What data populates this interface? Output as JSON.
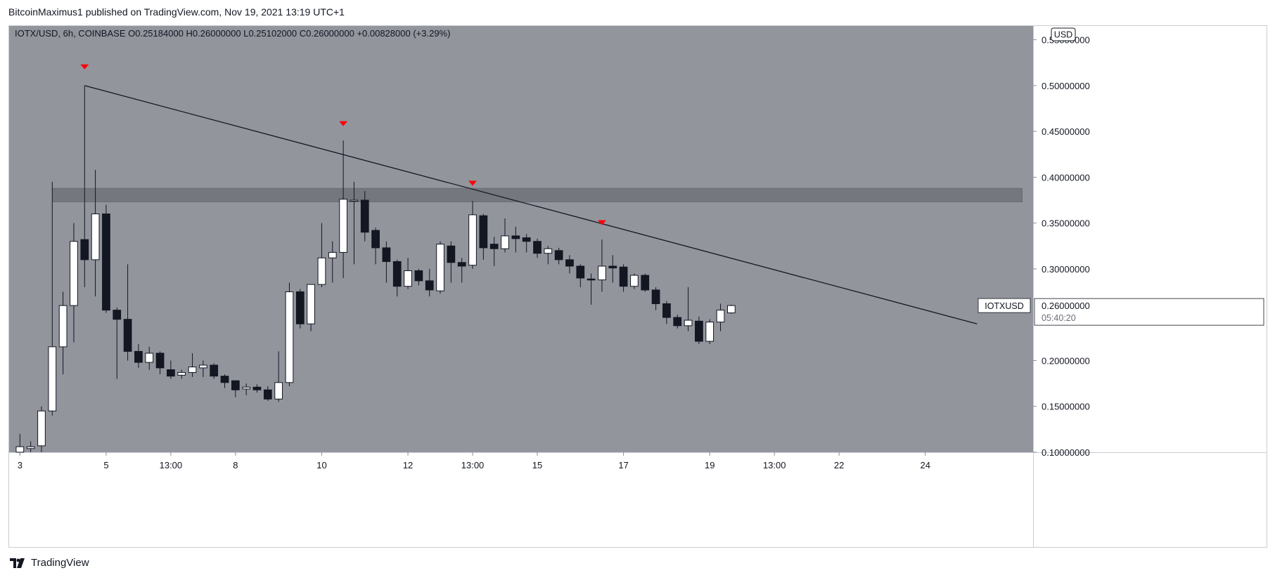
{
  "attribution": "BitcoinMaximus1 published on TradingView.com, Nov 19, 2021 13:19 UTC+1",
  "footer": {
    "brand": "TradingView"
  },
  "colors": {
    "plot_bg": "#93959d",
    "axis_bg": "#ffffff",
    "bull_candle": "#ffffff",
    "bear_candle": "#131722",
    "wick": "#131722",
    "marker": "#ff0000",
    "zone": "#6b6e76"
  },
  "chart_data": {
    "type": "candlestick",
    "symbol_line": {
      "symbol": "IOTX/USD, 6h, COINBASE",
      "o_label": "O",
      "o_value": "0.25184000",
      "h_label": "H",
      "h_value": "0.26000000",
      "l_label": "L",
      "l_value": "0.25102000",
      "c_label": "C",
      "c_value": "0.26000000",
      "change": "+0.00828000 (+3.29%)"
    },
    "currency_badge": "USD",
    "price_tag": {
      "symbol": "IOTXUSD",
      "price": "0.26000000",
      "countdown": "05:40:20",
      "value": 0.26
    },
    "y_range": [
      0.1,
      0.565
    ],
    "y_ticks": [
      {
        "value": 0.55,
        "label": "0.55000000"
      },
      {
        "value": 0.5,
        "label": "0.50000000"
      },
      {
        "value": 0.45,
        "label": "0.45000000"
      },
      {
        "value": 0.4,
        "label": "0.40000000"
      },
      {
        "value": 0.35,
        "label": "0.35000000"
      },
      {
        "value": 0.3,
        "label": "0.30000000"
      },
      {
        "value": 0.2,
        "label": "0.20000000"
      },
      {
        "value": 0.15,
        "label": "0.15000000"
      },
      {
        "value": 0.1,
        "label": "0.10000000"
      }
    ],
    "x_range": [
      2.75,
      26.5
    ],
    "x_ticks": [
      {
        "value": 3,
        "label": "3"
      },
      {
        "value": 5,
        "label": "5"
      },
      {
        "value": 6.5,
        "label": "13:00"
      },
      {
        "value": 8,
        "label": "8"
      },
      {
        "value": 10,
        "label": "10"
      },
      {
        "value": 12,
        "label": "12"
      },
      {
        "value": 13.5,
        "label": "13:00"
      },
      {
        "value": 15,
        "label": "15"
      },
      {
        "value": 17,
        "label": "17"
      },
      {
        "value": 19,
        "label": "19"
      },
      {
        "value": 20.5,
        "label": "13:00"
      },
      {
        "value": 22,
        "label": "22"
      },
      {
        "value": 24,
        "label": "24"
      }
    ],
    "candles": [
      {
        "t": 3.0,
        "o": 0.1,
        "h": 0.12,
        "l": 0.098,
        "c": 0.106
      },
      {
        "t": 3.25,
        "o": 0.104,
        "h": 0.112,
        "l": 0.1,
        "c": 0.106
      },
      {
        "t": 3.5,
        "o": 0.107,
        "h": 0.15,
        "l": 0.1,
        "c": 0.145
      },
      {
        "t": 3.75,
        "o": 0.145,
        "h": 0.395,
        "l": 0.14,
        "c": 0.215
      },
      {
        "t": 4.0,
        "o": 0.215,
        "h": 0.275,
        "l": 0.185,
        "c": 0.26
      },
      {
        "t": 4.25,
        "o": 0.26,
        "h": 0.35,
        "l": 0.22,
        "c": 0.33
      },
      {
        "t": 4.5,
        "o": 0.332,
        "h": 0.5,
        "l": 0.28,
        "c": 0.31
      },
      {
        "t": 4.75,
        "o": 0.31,
        "h": 0.408,
        "l": 0.27,
        "c": 0.36
      },
      {
        "t": 5.0,
        "o": 0.36,
        "h": 0.37,
        "l": 0.252,
        "c": 0.255
      },
      {
        "t": 5.25,
        "o": 0.255,
        "h": 0.258,
        "l": 0.18,
        "c": 0.245
      },
      {
        "t": 5.5,
        "o": 0.245,
        "h": 0.305,
        "l": 0.2,
        "c": 0.21
      },
      {
        "t": 5.75,
        "o": 0.21,
        "h": 0.218,
        "l": 0.192,
        "c": 0.198
      },
      {
        "t": 6.0,
        "o": 0.198,
        "h": 0.215,
        "l": 0.19,
        "c": 0.208
      },
      {
        "t": 6.25,
        "o": 0.208,
        "h": 0.21,
        "l": 0.185,
        "c": 0.192
      },
      {
        "t": 6.5,
        "o": 0.19,
        "h": 0.2,
        "l": 0.18,
        "c": 0.183
      },
      {
        "t": 6.75,
        "o": 0.184,
        "h": 0.19,
        "l": 0.18,
        "c": 0.187
      },
      {
        "t": 7.0,
        "o": 0.187,
        "h": 0.208,
        "l": 0.182,
        "c": 0.193
      },
      {
        "t": 7.25,
        "o": 0.192,
        "h": 0.2,
        "l": 0.182,
        "c": 0.195
      },
      {
        "t": 7.5,
        "o": 0.195,
        "h": 0.197,
        "l": 0.18,
        "c": 0.183
      },
      {
        "t": 7.75,
        "o": 0.183,
        "h": 0.185,
        "l": 0.17,
        "c": 0.176
      },
      {
        "t": 8.0,
        "o": 0.178,
        "h": 0.178,
        "l": 0.16,
        "c": 0.168
      },
      {
        "t": 8.25,
        "o": 0.169,
        "h": 0.175,
        "l": 0.162,
        "c": 0.171
      },
      {
        "t": 8.5,
        "o": 0.171,
        "h": 0.174,
        "l": 0.165,
        "c": 0.168
      },
      {
        "t": 8.75,
        "o": 0.168,
        "h": 0.172,
        "l": 0.156,
        "c": 0.158
      },
      {
        "t": 9.0,
        "o": 0.158,
        "h": 0.21,
        "l": 0.155,
        "c": 0.176
      },
      {
        "t": 9.25,
        "o": 0.176,
        "h": 0.285,
        "l": 0.172,
        "c": 0.275
      },
      {
        "t": 9.5,
        "o": 0.275,
        "h": 0.278,
        "l": 0.235,
        "c": 0.24
      },
      {
        "t": 9.75,
        "o": 0.24,
        "h": 0.28,
        "l": 0.232,
        "c": 0.283
      },
      {
        "t": 10.0,
        "o": 0.283,
        "h": 0.35,
        "l": 0.28,
        "c": 0.312
      },
      {
        "t": 10.25,
        "o": 0.312,
        "h": 0.33,
        "l": 0.285,
        "c": 0.318
      },
      {
        "t": 10.5,
        "o": 0.318,
        "h": 0.44,
        "l": 0.29,
        "c": 0.376
      },
      {
        "t": 10.75,
        "o": 0.375,
        "h": 0.395,
        "l": 0.305,
        "c": 0.375
      },
      {
        "t": 11.0,
        "o": 0.375,
        "h": 0.385,
        "l": 0.33,
        "c": 0.34
      },
      {
        "t": 11.25,
        "o": 0.342,
        "h": 0.345,
        "l": 0.305,
        "c": 0.323
      },
      {
        "t": 11.5,
        "o": 0.323,
        "h": 0.33,
        "l": 0.285,
        "c": 0.308
      },
      {
        "t": 11.75,
        "o": 0.308,
        "h": 0.31,
        "l": 0.27,
        "c": 0.281
      },
      {
        "t": 12.0,
        "o": 0.281,
        "h": 0.312,
        "l": 0.278,
        "c": 0.298
      },
      {
        "t": 12.25,
        "o": 0.298,
        "h": 0.3,
        "l": 0.282,
        "c": 0.287
      },
      {
        "t": 12.5,
        "o": 0.287,
        "h": 0.3,
        "l": 0.27,
        "c": 0.277
      },
      {
        "t": 12.75,
        "o": 0.276,
        "h": 0.33,
        "l": 0.273,
        "c": 0.327
      },
      {
        "t": 13.0,
        "o": 0.325,
        "h": 0.33,
        "l": 0.285,
        "c": 0.307
      },
      {
        "t": 13.25,
        "o": 0.307,
        "h": 0.312,
        "l": 0.285,
        "c": 0.303
      },
      {
        "t": 13.5,
        "o": 0.304,
        "h": 0.374,
        "l": 0.3,
        "c": 0.359
      },
      {
        "t": 13.75,
        "o": 0.358,
        "h": 0.36,
        "l": 0.31,
        "c": 0.323
      },
      {
        "t": 14.0,
        "o": 0.327,
        "h": 0.335,
        "l": 0.303,
        "c": 0.322
      },
      {
        "t": 14.25,
        "o": 0.322,
        "h": 0.355,
        "l": 0.318,
        "c": 0.336
      },
      {
        "t": 14.5,
        "o": 0.336,
        "h": 0.346,
        "l": 0.318,
        "c": 0.333
      },
      {
        "t": 14.75,
        "o": 0.334,
        "h": 0.338,
        "l": 0.318,
        "c": 0.33
      },
      {
        "t": 15.0,
        "o": 0.33,
        "h": 0.333,
        "l": 0.312,
        "c": 0.317
      },
      {
        "t": 15.25,
        "o": 0.317,
        "h": 0.325,
        "l": 0.305,
        "c": 0.322
      },
      {
        "t": 15.5,
        "o": 0.32,
        "h": 0.323,
        "l": 0.305,
        "c": 0.31
      },
      {
        "t": 15.75,
        "o": 0.31,
        "h": 0.315,
        "l": 0.295,
        "c": 0.303
      },
      {
        "t": 16.0,
        "o": 0.303,
        "h": 0.305,
        "l": 0.28,
        "c": 0.29
      },
      {
        "t": 16.25,
        "o": 0.289,
        "h": 0.295,
        "l": 0.261,
        "c": 0.288
      },
      {
        "t": 16.5,
        "o": 0.288,
        "h": 0.332,
        "l": 0.275,
        "c": 0.303
      },
      {
        "t": 16.75,
        "o": 0.303,
        "h": 0.315,
        "l": 0.285,
        "c": 0.301
      },
      {
        "t": 17.0,
        "o": 0.302,
        "h": 0.305,
        "l": 0.275,
        "c": 0.281
      },
      {
        "t": 17.25,
        "o": 0.281,
        "h": 0.295,
        "l": 0.278,
        "c": 0.293
      },
      {
        "t": 17.5,
        "o": 0.293,
        "h": 0.295,
        "l": 0.275,
        "c": 0.277
      },
      {
        "t": 17.75,
        "o": 0.277,
        "h": 0.28,
        "l": 0.255,
        "c": 0.262
      },
      {
        "t": 18.0,
        "o": 0.262,
        "h": 0.265,
        "l": 0.24,
        "c": 0.247
      },
      {
        "t": 18.25,
        "o": 0.247,
        "h": 0.25,
        "l": 0.235,
        "c": 0.238
      },
      {
        "t": 18.5,
        "o": 0.238,
        "h": 0.28,
        "l": 0.232,
        "c": 0.244
      },
      {
        "t": 18.75,
        "o": 0.243,
        "h": 0.248,
        "l": 0.218,
        "c": 0.221
      },
      {
        "t": 19.0,
        "o": 0.221,
        "h": 0.245,
        "l": 0.218,
        "c": 0.242
      },
      {
        "t": 19.25,
        "o": 0.242,
        "h": 0.262,
        "l": 0.232,
        "c": 0.255
      },
      {
        "t": 19.5,
        "o": 0.252,
        "h": 0.261,
        "l": 0.251,
        "c": 0.26
      }
    ],
    "resistance_zone": {
      "x_start": 3.75,
      "x_end": 26.25,
      "low": 0.373,
      "high": 0.388
    },
    "trendline": {
      "x_start": 4.5,
      "y_start": 0.5,
      "x_end": 25.2,
      "y_end": 0.24
    },
    "markers": [
      {
        "t": 4.5,
        "price": 0.52
      },
      {
        "t": 10.5,
        "price": 0.458
      },
      {
        "t": 13.5,
        "price": 0.393
      },
      {
        "t": 16.5,
        "price": 0.35
      }
    ]
  }
}
